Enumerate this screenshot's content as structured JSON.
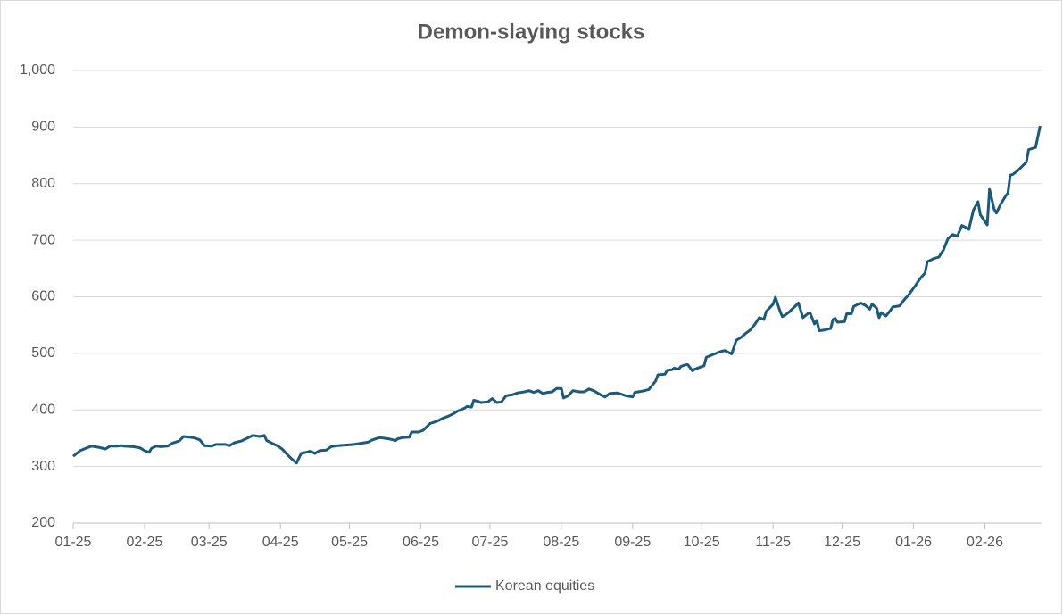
{
  "chart_data": {
    "type": "line",
    "title": "Demon-slaying stocks",
    "x": [
      0,
      3,
      6,
      8,
      11,
      14,
      16,
      19,
      21,
      22,
      26,
      29,
      31,
      33,
      34,
      36,
      38,
      41,
      43,
      46,
      48,
      52,
      53,
      55,
      57,
      60,
      62,
      66,
      68,
      70,
      73,
      75,
      78,
      81,
      83,
      84,
      87,
      89,
      91,
      93,
      95,
      97,
      99,
      101,
      103,
      105,
      107,
      110,
      112,
      115,
      119,
      122,
      125,
      128,
      130,
      133,
      135,
      137,
      140,
      141,
      143,
      146,
      147,
      150,
      152,
      155,
      158,
      161,
      163,
      165,
      167,
      170,
      171,
      173,
      174,
      176,
      177,
      180,
      182,
      184,
      186,
      188,
      191,
      193,
      196,
      198,
      200,
      202,
      204,
      206,
      208,
      210,
      212,
      213,
      215,
      217,
      220,
      222,
      224,
      226,
      229,
      231,
      233,
      236,
      238,
      240,
      243,
      244,
      247,
      250,
      253,
      254,
      257,
      258,
      260,
      261,
      263,
      264,
      266,
      267,
      269,
      270,
      272,
      274,
      275,
      278,
      281,
      283,
      284,
      286,
      288,
      290,
      292,
      294,
      296,
      298,
      300,
      301,
      304,
      305,
      307,
      308,
      309,
      311,
      314,
      315,
      317,
      319,
      320,
      322,
      323,
      324,
      326,
      329,
      330,
      331,
      332,
      335,
      336,
      338,
      339,
      342,
      344,
      346,
      347,
      349,
      350,
      351,
      353,
      355,
      356,
      359,
      361,
      363,
      364,
      366,
      368,
      370,
      371,
      374,
      376,
      378,
      380,
      382,
      384,
      386,
      388,
      389,
      391,
      393,
      394,
      397,
      398,
      400,
      401,
      403,
      405,
      406,
      407,
      408,
      410,
      412,
      414,
      415,
      418,
      420
    ],
    "series": [
      {
        "name": "Korean equities",
        "color": "#1b5a78",
        "values": [
          318,
          328,
          333,
          336,
          334,
          331,
          336,
          336,
          337,
          336,
          335,
          333,
          328,
          325,
          332,
          336,
          335,
          336,
          341,
          345,
          353,
          351,
          350,
          347,
          337,
          336,
          339,
          339,
          337,
          342,
          345,
          349,
          355,
          353,
          355,
          346,
          340,
          336,
          330,
          321,
          313,
          306,
          323,
          325,
          327,
          323,
          328,
          329,
          335,
          337,
          338,
          339,
          341,
          343,
          347,
          351,
          350,
          349,
          346,
          349,
          351,
          352,
          361,
          361,
          364,
          376,
          380,
          386,
          389,
          393,
          398,
          403,
          406,
          405,
          417,
          415,
          413,
          414,
          420,
          413,
          414,
          425,
          427,
          430,
          432,
          434,
          431,
          434,
          429,
          431,
          432,
          438,
          438,
          421,
          425,
          434,
          432,
          432,
          437,
          434,
          427,
          423,
          429,
          430,
          428,
          425,
          423,
          431,
          433,
          436,
          451,
          462,
          463,
          470,
          471,
          474,
          472,
          477,
          480,
          480,
          469,
          472,
          475,
          478,
          493,
          498,
          503,
          505,
          503,
          499,
          523,
          528,
          535,
          541,
          551,
          563,
          560,
          574,
          587,
          599,
          575,
          565,
          567,
          573,
          585,
          589,
          563,
          570,
          572,
          552,
          558,
          540,
          541,
          544,
          560,
          562,
          555,
          556,
          570,
          570,
          583,
          589,
          585,
          578,
          587,
          580,
          563,
          572,
          566,
          576,
          582,
          584,
          595,
          604,
          610,
          621,
          633,
          642,
          662,
          668,
          670,
          683,
          703,
          710,
          707,
          726,
          722,
          719,
          753,
          768,
          745,
          727,
          790,
          755,
          748,
          765,
          778,
          783,
          815,
          816,
          822,
          830,
          838,
          860,
          864,
          902
        ]
      }
    ],
    "xlim": [
      0,
      421
    ],
    "xticks": [
      {
        "value": 0,
        "label": "01-25"
      },
      {
        "value": 31,
        "label": "02-25"
      },
      {
        "value": 59,
        "label": "03-25"
      },
      {
        "value": 90,
        "label": "04-25"
      },
      {
        "value": 120,
        "label": "05-25"
      },
      {
        "value": 151,
        "label": "06-25"
      },
      {
        "value": 181,
        "label": "07-25"
      },
      {
        "value": 212,
        "label": "08-25"
      },
      {
        "value": 243,
        "label": "09-25"
      },
      {
        "value": 273,
        "label": "10-25"
      },
      {
        "value": 304,
        "label": "11-25"
      },
      {
        "value": 334,
        "label": "12-25"
      },
      {
        "value": 365,
        "label": "01-26"
      },
      {
        "value": 396,
        "label": "02-26"
      }
    ],
    "ylim": [
      200,
      1000
    ],
    "yticks": [
      200,
      300,
      400,
      500,
      600,
      700,
      800,
      900,
      {
        "value": 1000,
        "label": "1,000"
      }
    ],
    "grid": true,
    "legend": "bottom"
  }
}
